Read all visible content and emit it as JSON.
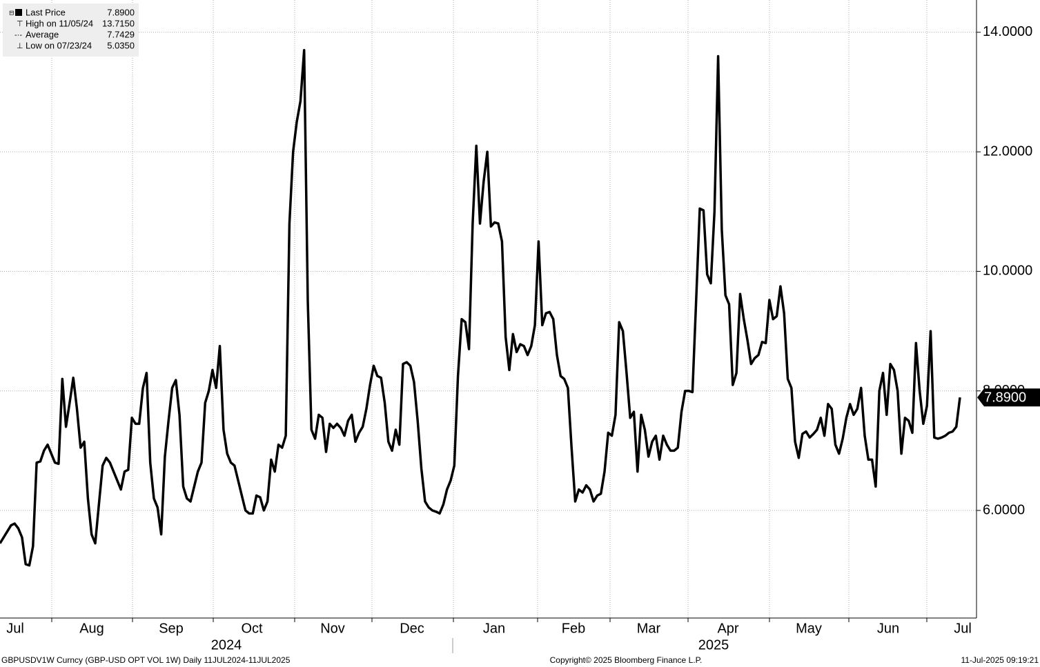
{
  "chart_data": {
    "type": "line",
    "legend": [
      {
        "label": "Last Price",
        "value": "7.8900"
      },
      {
        "label": "High on 11/05/24",
        "value": "13.7150"
      },
      {
        "label": "Average",
        "value": "7.7429"
      },
      {
        "label": "Low on 07/23/24",
        "value": "5.0350"
      }
    ],
    "series": [
      {
        "color": "#000000",
        "values": [
          5.45,
          5.55,
          5.65,
          5.75,
          5.78,
          5.7,
          5.55,
          5.1,
          5.08,
          5.4,
          6.8,
          6.82,
          7.0,
          7.1,
          6.95,
          6.8,
          6.78,
          8.2,
          7.4,
          7.8,
          8.22,
          7.7,
          7.05,
          7.15,
          6.2,
          5.6,
          5.45,
          6.1,
          6.75,
          6.88,
          6.8,
          6.65,
          6.5,
          6.35,
          6.65,
          6.68,
          7.55,
          7.45,
          7.45,
          8.05,
          8.3,
          6.8,
          6.2,
          6.05,
          5.6,
          6.9,
          7.5,
          8.05,
          8.18,
          7.6,
          6.4,
          6.2,
          6.15,
          6.4,
          6.65,
          6.8,
          7.8,
          8.0,
          8.35,
          8.05,
          8.75,
          7.35,
          6.95,
          6.8,
          6.75,
          6.5,
          6.25,
          6.0,
          5.95,
          5.95,
          6.25,
          6.22,
          6.0,
          6.15,
          6.85,
          6.65,
          7.1,
          7.05,
          7.25,
          10.8,
          12.0,
          12.5,
          12.85,
          13.7,
          9.5,
          7.35,
          7.2,
          7.6,
          7.55,
          6.98,
          7.45,
          7.38,
          7.45,
          7.38,
          7.25,
          7.5,
          7.6,
          7.15,
          7.3,
          7.4,
          7.7,
          8.1,
          8.42,
          8.25,
          8.22,
          7.8,
          7.15,
          7.0,
          7.35,
          7.1,
          8.45,
          8.48,
          8.42,
          8.15,
          7.5,
          6.7,
          6.15,
          6.05,
          6.0,
          5.98,
          5.95,
          6.1,
          6.35,
          6.5,
          6.75,
          8.25,
          9.2,
          9.15,
          8.7,
          10.8,
          12.1,
          10.8,
          11.5,
          12.0,
          10.75,
          10.82,
          10.8,
          10.5,
          8.9,
          8.35,
          8.95,
          8.65,
          8.78,
          8.75,
          8.6,
          8.75,
          9.1,
          10.5,
          9.1,
          9.3,
          9.32,
          9.2,
          8.6,
          8.25,
          8.2,
          8.05,
          7.05,
          6.15,
          6.35,
          6.3,
          6.42,
          6.35,
          6.15,
          6.25,
          6.28,
          6.65,
          7.3,
          7.25,
          7.6,
          9.15,
          9.0,
          8.3,
          7.55,
          7.65,
          6.65,
          7.6,
          7.35,
          6.9,
          7.15,
          7.25,
          6.85,
          7.25,
          7.1,
          7.0,
          7.0,
          7.05,
          7.65,
          8.0,
          8.0,
          7.98,
          9.5,
          11.05,
          11.02,
          9.95,
          9.8,
          11.0,
          13.6,
          10.7,
          9.6,
          9.45,
          8.1,
          8.3,
          9.62,
          9.2,
          8.85,
          8.45,
          8.55,
          8.6,
          8.82,
          8.8,
          9.52,
          9.2,
          9.25,
          9.75,
          9.3,
          8.2,
          8.05,
          7.15,
          6.88,
          7.28,
          7.32,
          7.22,
          7.28,
          7.35,
          7.55,
          7.25,
          7.78,
          7.7,
          7.1,
          6.95,
          7.2,
          7.55,
          7.78,
          7.6,
          7.7,
          8.05,
          7.25,
          6.85,
          6.85,
          6.4,
          8.0,
          8.3,
          7.6,
          8.45,
          8.35,
          8.0,
          6.95,
          7.55,
          7.5,
          7.3,
          8.8,
          8.0,
          7.45,
          7.75,
          9.0,
          7.22,
          7.2,
          7.22,
          7.25,
          7.3,
          7.32,
          7.4,
          7.89
        ]
      }
    ],
    "ylim": [
      4.2,
      14.54
    ],
    "yticks": [
      {
        "value": 6,
        "label": "6.0000"
      },
      {
        "value": 8,
        "label": "8.0000"
      },
      {
        "value": 10,
        "label": "10.0000"
      },
      {
        "value": 12,
        "label": "12.0000"
      },
      {
        "value": 14,
        "label": "14.0000"
      }
    ],
    "grid": true,
    "last_value": {
      "value": 7.89,
      "label": "7.8900"
    },
    "x_labels": [
      "Jul",
      "Aug",
      "Sep",
      "Oct",
      "Nov",
      "Dec",
      "Jan",
      "Feb",
      "Mar",
      "Apr",
      "May",
      "Jun",
      "Jul"
    ],
    "year_labels": [
      "2024",
      "2025"
    ],
    "footer": {
      "left": "GBPUSDV1W Curncy (GBP-USD OPT VOL 1W)  Daily 11JUL2024-11JUL2025",
      "center": "Copyright© 2025 Bloomberg Finance L.P.",
      "right": "11-Jul-2025 09:19:21"
    }
  }
}
